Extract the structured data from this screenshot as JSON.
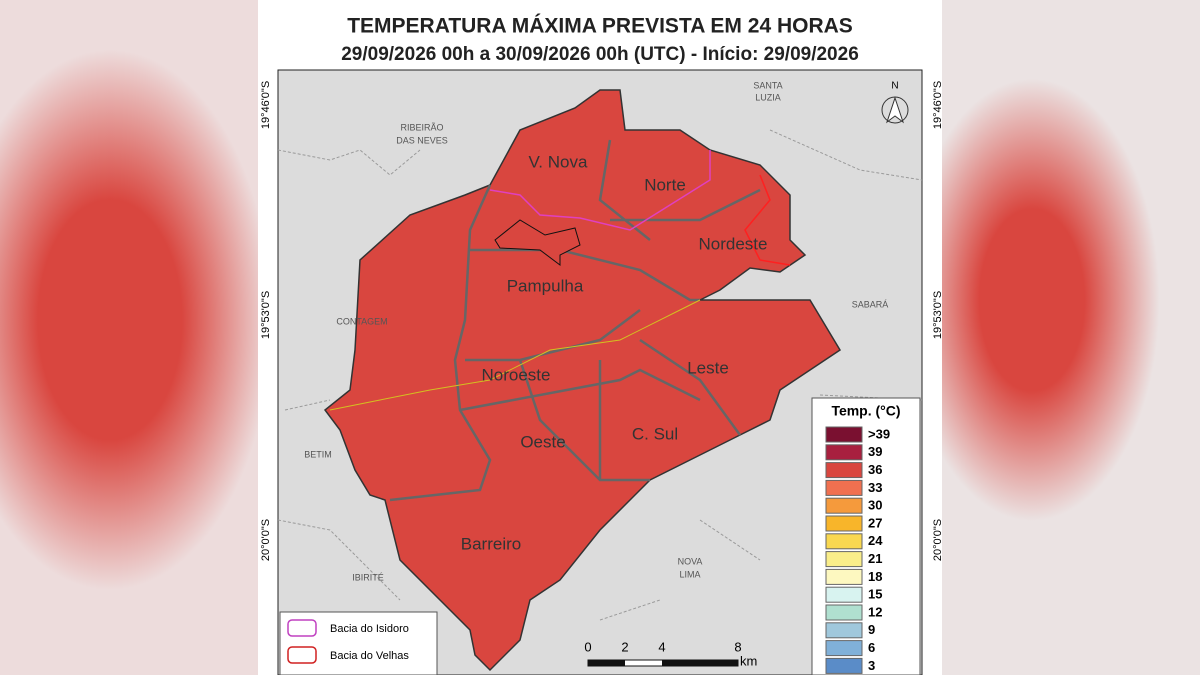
{
  "header": {
    "title": "TEMPERATURA MÁXIMA PREVISTA EM 24 HORAS",
    "subtitle": "29/09/2026 00h a 30/09/2026 00h (UTC) - Início: 29/09/2026"
  },
  "latitudes": [
    "19°46'0\"S",
    "19°53'0\"S",
    "20°0'0\"S"
  ],
  "north": "N",
  "regions": [
    "V. Nova",
    "Norte",
    "Nordeste",
    "Pampulha",
    "Noroeste",
    "Leste",
    "Oeste",
    "C. Sul",
    "Barreiro"
  ],
  "neighbors": [
    "RIBEIRÃO",
    "DAS NEVES",
    "SANTA",
    "LUZIA",
    "SABARÁ",
    "CONTAGEM",
    "BETIM",
    "IBIRITÉ",
    "NOVA",
    "LIMA"
  ],
  "legend": {
    "title": "Temp. (°C)",
    "items": [
      {
        "label": ">39",
        "color": "#7a1030"
      },
      {
        "label": "39",
        "color": "#a8203f"
      },
      {
        "label": "36",
        "color": "#d9463f"
      },
      {
        "label": "33",
        "color": "#f07050"
      },
      {
        "label": "30",
        "color": "#f59a3c"
      },
      {
        "label": "27",
        "color": "#f8b52a"
      },
      {
        "label": "24",
        "color": "#f9d850"
      },
      {
        "label": "21",
        "color": "#faee8a"
      },
      {
        "label": "18",
        "color": "#fdf8c0"
      },
      {
        "label": "15",
        "color": "#d8f3f0"
      },
      {
        "label": "12",
        "color": "#b0e0d0"
      },
      {
        "label": "9",
        "color": "#a0c8dc"
      },
      {
        "label": "6",
        "color": "#80b0d8"
      },
      {
        "label": "3",
        "color": "#5a8cc8"
      }
    ]
  },
  "basins": [
    {
      "label": "Bacia do Isidoro",
      "color": "#c040c0"
    },
    {
      "label": "Bacia do Velhas",
      "color": "#d02020"
    }
  ],
  "scale": {
    "ticks": [
      "0",
      "2",
      "4",
      "8"
    ],
    "unit": "km"
  }
}
